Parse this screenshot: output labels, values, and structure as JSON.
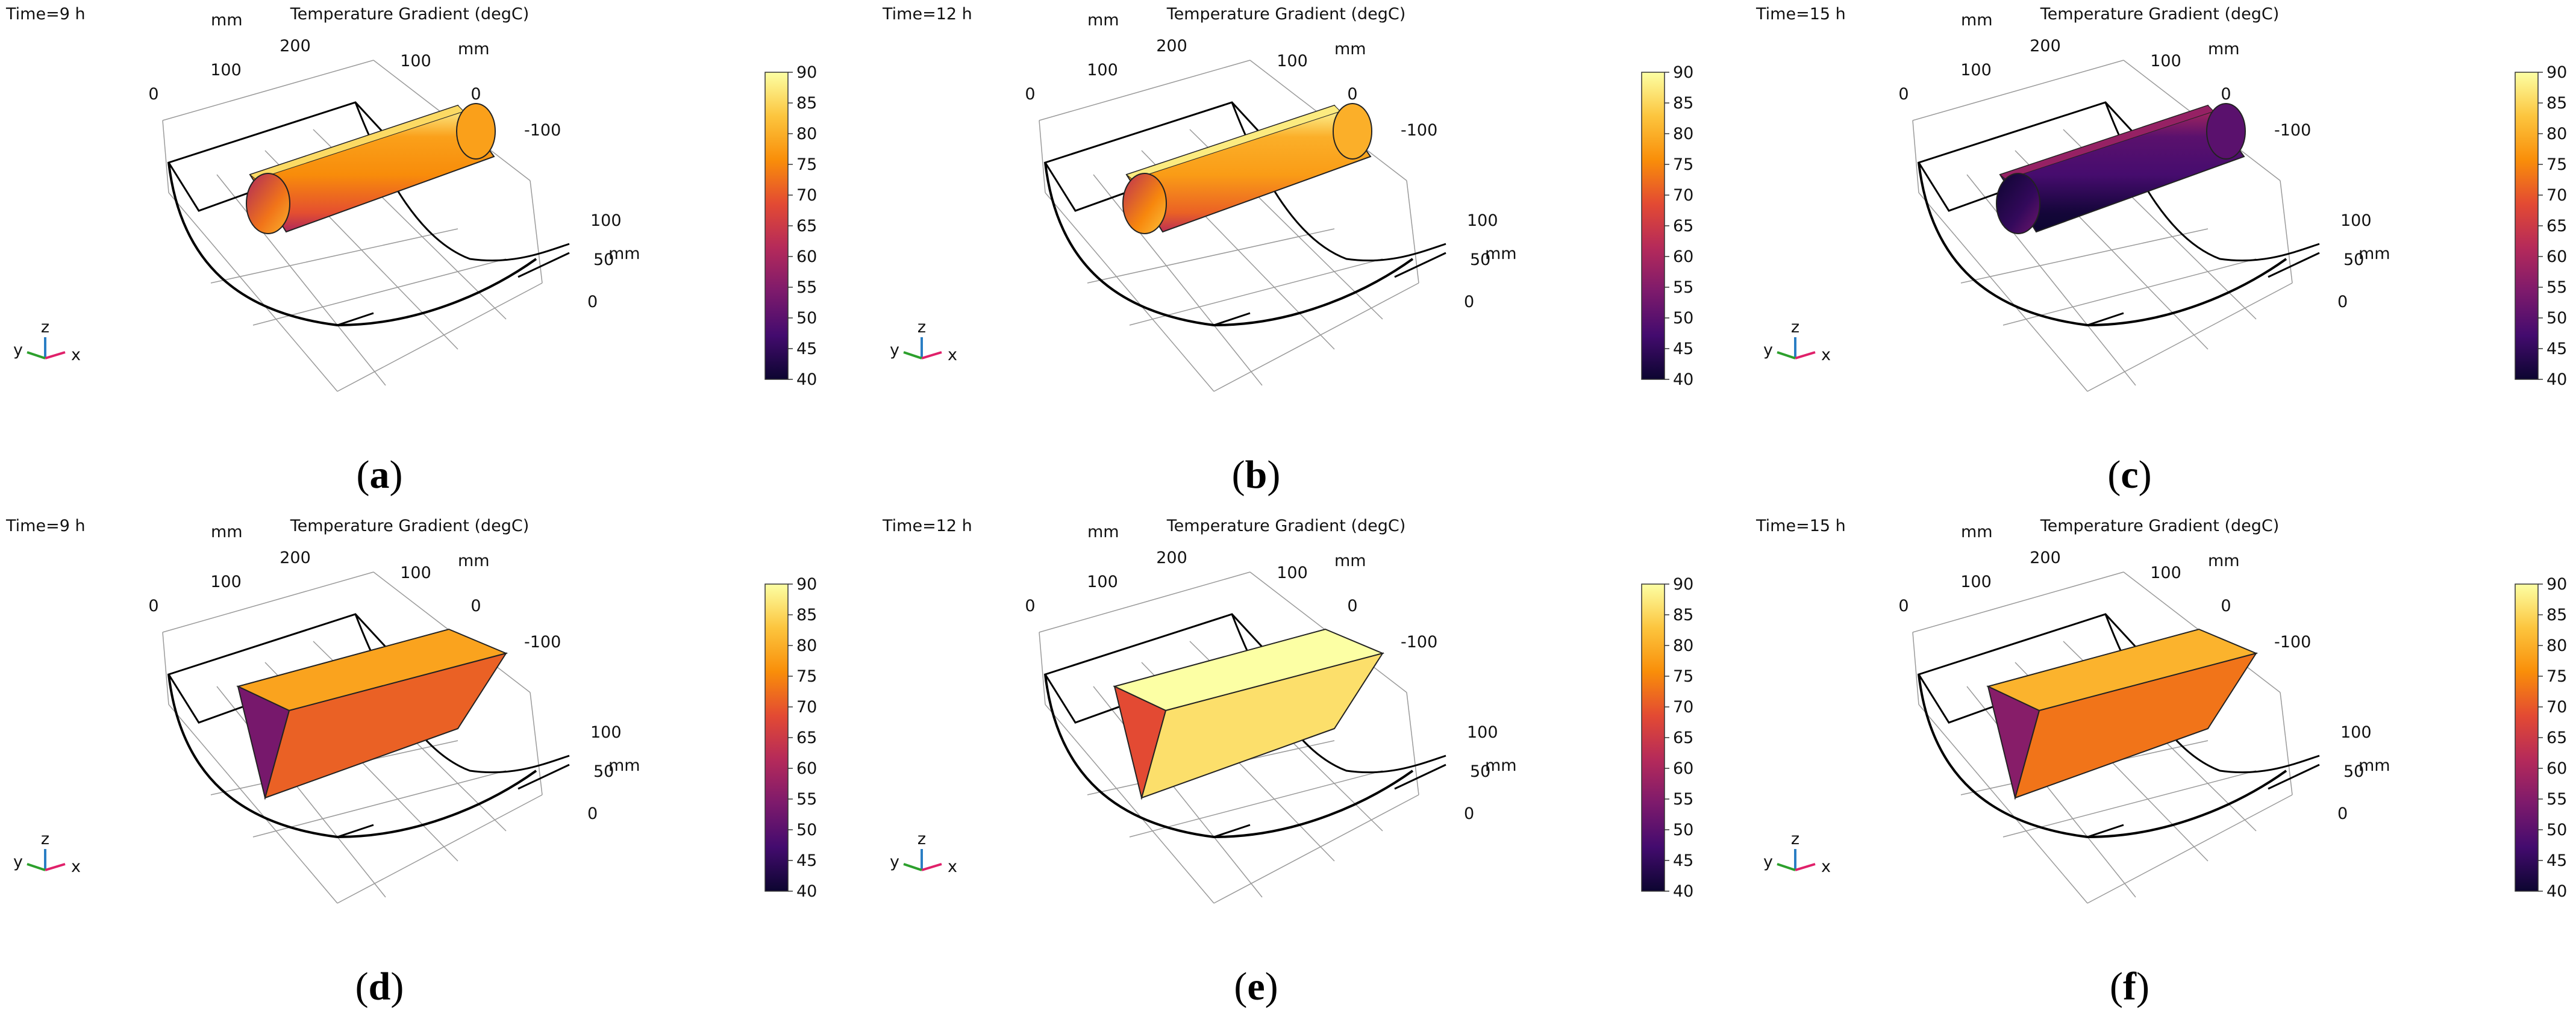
{
  "figure": {
    "colorbar_ticks": [
      "90",
      "85",
      "80",
      "75",
      "70",
      "65",
      "60",
      "55",
      "50",
      "45",
      "40"
    ],
    "axis_labels": {
      "mm": "mm",
      "x": "x",
      "y": "y",
      "z": "z"
    },
    "ticks": {
      "t0": "0",
      "t100a": "100",
      "t200": "200",
      "t100b": "100",
      "t0b": "0",
      "tm100": "-100",
      "t100c": "100",
      "t50": "50",
      "t0c": "0"
    },
    "colormap": [
      "#0c0530",
      "#430b6e",
      "#7d1a6c",
      "#b52a5a",
      "#e34a33",
      "#f98e09",
      "#fcc53e",
      "#fcffa4"
    ],
    "panels": [
      {
        "time": "Time=9 h",
        "title": "Temperature Gradient (degC)",
        "label": "a",
        "shape": "cylinder",
        "fill_level": 0.76
      },
      {
        "time": "Time=12 h",
        "title": "Temperature Gradient (degC)",
        "label": "b",
        "shape": "cylinder",
        "fill_level": 0.8
      },
      {
        "time": "Time=15 h",
        "title": "Temperature Gradient (degC)",
        "label": "c",
        "shape": "cylinder",
        "fill_level": 0.2
      },
      {
        "time": "Time=9 h",
        "title": "Temperature Gradient (degC)",
        "label": "d",
        "shape": "box",
        "fill_level": 0.62
      },
      {
        "time": "Time=12 h",
        "title": "Temperature Gradient (degC)",
        "label": "e",
        "shape": "box",
        "fill_level": 0.92
      },
      {
        "time": "Time=15 h",
        "title": "Temperature Gradient (degC)",
        "label": "f",
        "shape": "box",
        "fill_level": 0.66
      }
    ]
  }
}
